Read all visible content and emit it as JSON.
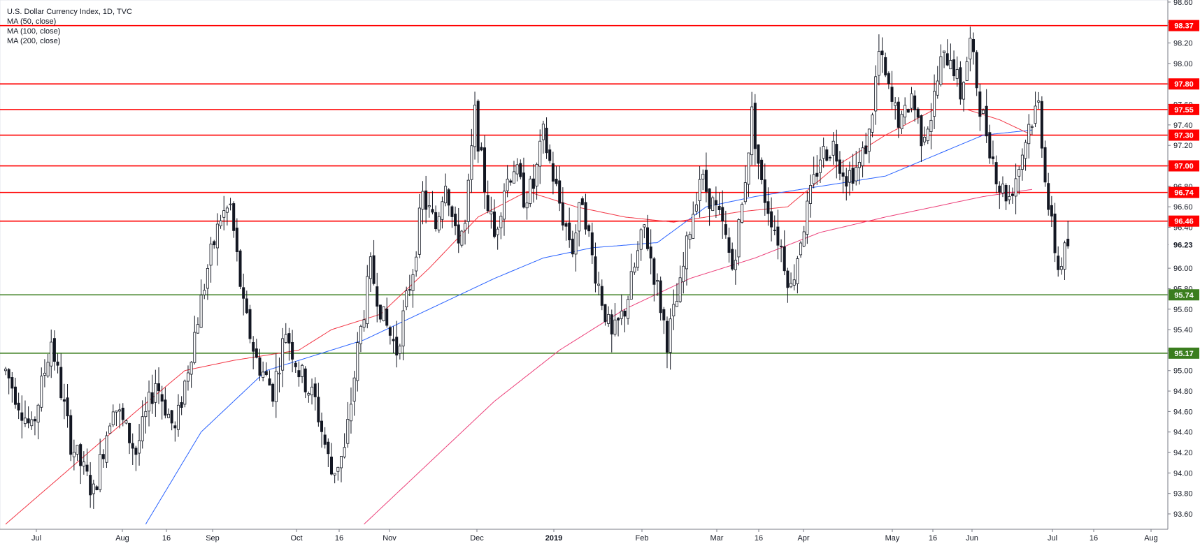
{
  "chart_data": {
    "type": "candlestick",
    "title": "U.S. Dollar Currency Index, 1D, TVC",
    "indicators": [
      "MA (50, close)",
      "MA (100, close)",
      "MA (200, close)"
    ],
    "ylim": [
      93.45,
      98.62
    ],
    "y_ticks": [
      "98.60",
      "98.40",
      "98.20",
      "98.00",
      "97.80",
      "97.60",
      "97.40",
      "97.20",
      "97.00",
      "96.80",
      "96.60",
      "96.40",
      "96.23",
      "96.00",
      "95.80",
      "95.60",
      "95.40",
      "95.20",
      "95.00",
      "94.80",
      "94.60",
      "94.40",
      "94.20",
      "94.00",
      "93.80",
      "93.60"
    ],
    "x_ticks": [
      "Jul",
      "Aug",
      "16",
      "Sep",
      "Oct",
      "16",
      "Nov",
      "Dec",
      "2019",
      "Feb",
      "Mar",
      "16",
      "Apr",
      "May",
      "16",
      "Jun",
      "Jul",
      "16",
      "Aug"
    ],
    "current_price_label": "96.23",
    "resistance_levels": [
      {
        "label": "98.37",
        "value": 98.37
      },
      {
        "label": "97.80",
        "value": 97.8
      },
      {
        "label": "97.55",
        "value": 97.55
      },
      {
        "label": "97.30",
        "value": 97.3
      },
      {
        "label": "97.00",
        "value": 97.0
      },
      {
        "label": "96.74",
        "value": 96.74
      },
      {
        "label": "96.46",
        "value": 96.46
      }
    ],
    "support_levels": [
      {
        "label": "95.74",
        "value": 95.74
      },
      {
        "label": "95.17",
        "value": 95.17
      }
    ],
    "colors": {
      "resistance": "#ff0000",
      "support": "#3a7d1e",
      "ma50": "#f23645",
      "ma100": "#2962ff",
      "ma200": "#ec407a",
      "candle": "#131722",
      "axis_text": "#131722"
    },
    "price_anchors": [
      [
        0,
        95.0
      ],
      [
        8,
        94.4
      ],
      [
        14,
        95.3
      ],
      [
        20,
        94.3
      ],
      [
        27,
        93.8
      ],
      [
        33,
        94.7
      ],
      [
        40,
        94.2
      ],
      [
        46,
        94.9
      ],
      [
        52,
        94.4
      ],
      [
        57,
        95.2
      ],
      [
        62,
        96.0
      ],
      [
        66,
        96.5
      ],
      [
        69,
        96.6
      ],
      [
        73,
        95.6
      ],
      [
        77,
        95.1
      ],
      [
        82,
        94.8
      ],
      [
        86,
        95.4
      ],
      [
        90,
        95.0
      ],
      [
        95,
        94.7
      ],
      [
        100,
        94.0
      ],
      [
        104,
        94.2
      ],
      [
        108,
        95.2
      ],
      [
        112,
        96.0
      ],
      [
        116,
        95.5
      ],
      [
        120,
        95.2
      ],
      [
        125,
        96.0
      ],
      [
        128,
        96.7
      ],
      [
        132,
        96.4
      ],
      [
        135,
        96.9
      ],
      [
        138,
        96.3
      ],
      [
        141,
        96.4
      ],
      [
        144,
        97.5
      ],
      [
        147,
        96.8
      ],
      [
        150,
        96.3
      ],
      [
        153,
        96.8
      ],
      [
        156,
        97.0
      ],
      [
        159,
        96.7
      ],
      [
        162,
        96.8
      ],
      [
        165,
        97.3
      ],
      [
        168,
        96.9
      ],
      [
        171,
        96.5
      ],
      [
        174,
        96.2
      ],
      [
        177,
        96.7
      ],
      [
        180,
        96.1
      ],
      [
        183,
        95.7
      ],
      [
        186,
        95.3
      ],
      [
        190,
        95.6
      ],
      [
        193,
        96.0
      ],
      [
        196,
        96.4
      ],
      [
        200,
        95.8
      ],
      [
        203,
        95.3
      ],
      [
        207,
        95.8
      ],
      [
        210,
        96.4
      ],
      [
        213,
        96.9
      ],
      [
        216,
        96.7
      ],
      [
        220,
        96.4
      ],
      [
        223,
        96.0
      ],
      [
        226,
        96.6
      ],
      [
        229,
        97.5
      ],
      [
        232,
        96.8
      ],
      [
        235,
        96.5
      ],
      [
        238,
        96.2
      ],
      [
        241,
        95.8
      ],
      [
        244,
        96.3
      ],
      [
        247,
        96.7
      ],
      [
        250,
        97.1
      ],
      [
        254,
        97.2
      ],
      [
        258,
        96.9
      ],
      [
        262,
        97.0
      ],
      [
        265,
        97.3
      ],
      [
        268,
        98.1
      ],
      [
        272,
        97.6
      ],
      [
        275,
        97.4
      ],
      [
        278,
        97.7
      ],
      [
        281,
        97.3
      ],
      [
        284,
        97.5
      ],
      [
        287,
        98.0
      ],
      [
        290,
        98.1
      ],
      [
        293,
        97.7
      ],
      [
        296,
        98.2
      ],
      [
        299,
        97.6
      ],
      [
        302,
        97.2
      ],
      [
        305,
        96.8
      ],
      [
        308,
        96.7
      ],
      [
        311,
        97.0
      ],
      [
        314,
        97.4
      ],
      [
        317,
        97.6
      ],
      [
        320,
        96.6
      ],
      [
        323,
        96.0
      ],
      [
        326,
        96.23
      ]
    ],
    "ma50_anchors": [
      [
        0,
        93.5
      ],
      [
        40,
        94.6
      ],
      [
        55,
        95.0
      ],
      [
        70,
        95.1
      ],
      [
        90,
        95.2
      ],
      [
        100,
        95.4
      ],
      [
        115,
        95.55
      ],
      [
        130,
        96.0
      ],
      [
        145,
        96.5
      ],
      [
        160,
        96.75
      ],
      [
        175,
        96.6
      ],
      [
        190,
        96.5
      ],
      [
        205,
        96.45
      ],
      [
        215,
        96.5
      ],
      [
        225,
        96.55
      ],
      [
        240,
        96.6
      ],
      [
        255,
        97.0
      ],
      [
        270,
        97.3
      ],
      [
        285,
        97.55
      ],
      [
        295,
        97.55
      ],
      [
        305,
        97.45
      ],
      [
        315,
        97.3
      ]
    ],
    "ma100_anchors": [
      [
        43,
        93.5
      ],
      [
        60,
        94.4
      ],
      [
        80,
        95.0
      ],
      [
        110,
        95.3
      ],
      [
        130,
        95.6
      ],
      [
        150,
        95.9
      ],
      [
        165,
        96.1
      ],
      [
        180,
        96.2
      ],
      [
        200,
        96.25
      ],
      [
        215,
        96.6
      ],
      [
        230,
        96.7
      ],
      [
        250,
        96.8
      ],
      [
        270,
        96.9
      ],
      [
        285,
        97.1
      ],
      [
        300,
        97.3
      ],
      [
        315,
        97.35
      ]
    ],
    "ma200_anchors": [
      [
        110,
        93.5
      ],
      [
        130,
        94.1
      ],
      [
        150,
        94.7
      ],
      [
        170,
        95.2
      ],
      [
        190,
        95.6
      ],
      [
        210,
        95.9
      ],
      [
        230,
        96.1
      ],
      [
        250,
        96.35
      ],
      [
        270,
        96.5
      ],
      [
        285,
        96.6
      ],
      [
        300,
        96.7
      ],
      [
        315,
        96.77
      ]
    ]
  }
}
